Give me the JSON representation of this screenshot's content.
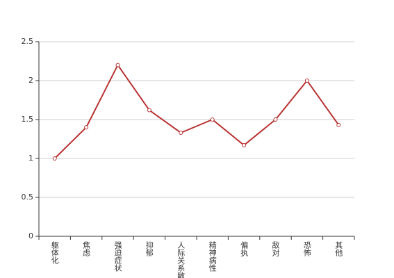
{
  "chart_data": {
    "type": "line",
    "categories": [
      "躯体化",
      "焦虑",
      "强迫症状",
      "抑郁",
      "人际关系敏感",
      "精神病性",
      "偏执",
      "敌对",
      "恐怖",
      "其他"
    ],
    "values": [
      1.0,
      1.4,
      2.2,
      1.62,
      1.33,
      1.5,
      1.17,
      1.5,
      2.0,
      1.43
    ],
    "color": "#b83232",
    "ylim": [
      0,
      2.5
    ],
    "yticks": [
      0,
      0.5,
      1,
      1.5,
      2,
      2.5
    ],
    "grid": true
  }
}
